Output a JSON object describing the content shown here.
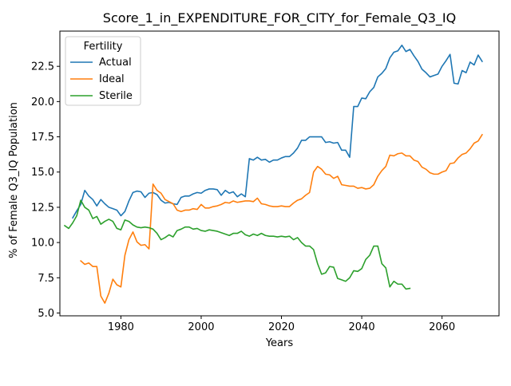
{
  "chart_data": {
    "type": "line",
    "title": "Score_1_in_EXPENDITURE_FOR_CITY_for_Female_Q3_IQ",
    "xlabel": "Years",
    "ylabel": "% of Female Q3_IQ Population",
    "xlim": [
      1964.8,
      2074.2
    ],
    "ylim": [
      4.8,
      25.0
    ],
    "xticks": [
      1980,
      2000,
      2020,
      2040,
      2060
    ],
    "yticks": [
      5.0,
      7.5,
      10.0,
      12.5,
      15.0,
      17.5,
      20.0,
      22.5
    ],
    "xtick_labels": [
      "1980",
      "2000",
      "2020",
      "2040",
      "2060"
    ],
    "ytick_labels": [
      "5.0",
      "7.5",
      "10.0",
      "12.5",
      "15.0",
      "17.5",
      "20.0",
      "22.5"
    ],
    "grid": false,
    "legend": {
      "title": "Fertility",
      "placement": "top-left"
    },
    "series": [
      {
        "name": "Actual",
        "color": "#1f77b4",
        "x": [
          1968,
          1969,
          1970,
          1971,
          1972,
          1973,
          1974,
          1975,
          1976,
          1977,
          1978,
          1979,
          1980,
          1981,
          1982,
          1983,
          1984,
          1985,
          1986,
          1987,
          1988,
          1989,
          1990,
          1991,
          1992,
          1993,
          1994,
          1995,
          1996,
          1997,
          1998,
          1999,
          2000,
          2001,
          2002,
          2003,
          2004,
          2005,
          2006,
          2007,
          2008,
          2009,
          2010,
          2011,
          2012,
          2013,
          2014,
          2015,
          2016,
          2017,
          2018,
          2019,
          2020,
          2021,
          2022,
          2023,
          2024,
          2025,
          2026,
          2027,
          2028,
          2029,
          2030,
          2031,
          2032,
          2033,
          2034,
          2035,
          2036,
          2037,
          2038,
          2039,
          2040,
          2041,
          2042,
          2043,
          2044,
          2045,
          2046,
          2047,
          2048,
          2049,
          2050,
          2051,
          2052,
          2053,
          2054,
          2055,
          2056,
          2057,
          2058,
          2059,
          2060,
          2061,
          2062,
          2063,
          2064,
          2065,
          2066,
          2067,
          2068,
          2069,
          2070
        ],
        "y": [
          11.75,
          12.25,
          12.7,
          13.7,
          13.3,
          13.05,
          12.6,
          13.05,
          12.75,
          12.5,
          12.4,
          12.3,
          11.9,
          12.2,
          12.95,
          13.55,
          13.65,
          13.6,
          13.2,
          13.5,
          13.55,
          13.4,
          13.0,
          12.8,
          12.85,
          12.75,
          12.7,
          13.2,
          13.3,
          13.3,
          13.45,
          13.55,
          13.5,
          13.7,
          13.8,
          13.8,
          13.75,
          13.35,
          13.7,
          13.5,
          13.6,
          13.25,
          13.45,
          13.25,
          15.95,
          15.85,
          16.05,
          15.85,
          15.9,
          15.7,
          15.85,
          15.85,
          16.0,
          16.1,
          16.1,
          16.35,
          16.7,
          17.25,
          17.25,
          17.5,
          17.5,
          17.5,
          17.5,
          17.1,
          17.15,
          17.05,
          17.1,
          16.55,
          16.55,
          16.05,
          19.65,
          19.65,
          20.25,
          20.2,
          20.7,
          21.0,
          21.75,
          22.0,
          22.35,
          23.1,
          23.5,
          23.6,
          24.0,
          23.55,
          23.7,
          23.25,
          22.85,
          22.3,
          22.05,
          21.75,
          21.85,
          21.95,
          22.5,
          22.9,
          23.35,
          21.3,
          21.25,
          22.2,
          22.05,
          22.8,
          22.6,
          23.3,
          22.85
        ]
      },
      {
        "name": "Ideal",
        "color": "#ff7f0e",
        "x": [
          1970,
          1971,
          1972,
          1973,
          1974,
          1975,
          1976,
          1977,
          1978,
          1979,
          1980,
          1981,
          1982,
          1983,
          1984,
          1985,
          1986,
          1987,
          1988,
          1989,
          1990,
          1991,
          1992,
          1993,
          1994,
          1995,
          1996,
          1997,
          1998,
          1999,
          2000,
          2001,
          2002,
          2003,
          2004,
          2005,
          2006,
          2007,
          2008,
          2009,
          2010,
          2011,
          2012,
          2013,
          2014,
          2015,
          2016,
          2017,
          2018,
          2019,
          2020,
          2021,
          2022,
          2023,
          2024,
          2025,
          2026,
          2027,
          2028,
          2029,
          2030,
          2031,
          2032,
          2033,
          2034,
          2035,
          2036,
          2037,
          2038,
          2039,
          2040,
          2041,
          2042,
          2043,
          2044,
          2045,
          2046,
          2047,
          2048,
          2049,
          2050,
          2051,
          2052,
          2053,
          2054,
          2055,
          2056,
          2057,
          2058,
          2059,
          2060,
          2061,
          2062,
          2063,
          2064,
          2065,
          2066,
          2067,
          2068,
          2069,
          2070
        ],
        "y": [
          8.7,
          8.45,
          8.55,
          8.3,
          8.3,
          6.2,
          5.7,
          6.4,
          7.4,
          7.0,
          6.85,
          9.1,
          10.2,
          10.75,
          10.05,
          9.8,
          9.85,
          9.55,
          14.15,
          13.7,
          13.5,
          13.05,
          12.9,
          12.75,
          12.3,
          12.2,
          12.3,
          12.3,
          12.4,
          12.35,
          12.7,
          12.45,
          12.45,
          12.55,
          12.6,
          12.7,
          12.85,
          12.8,
          12.95,
          12.85,
          12.9,
          12.95,
          12.95,
          12.9,
          13.15,
          12.75,
          12.7,
          12.6,
          12.55,
          12.55,
          12.6,
          12.55,
          12.55,
          12.8,
          13.0,
          13.1,
          13.35,
          13.55,
          15.0,
          15.4,
          15.2,
          14.85,
          14.8,
          14.55,
          14.7,
          14.1,
          14.05,
          14.0,
          14.0,
          13.85,
          13.9,
          13.8,
          13.85,
          14.1,
          14.7,
          15.1,
          15.4,
          16.2,
          16.15,
          16.3,
          16.35,
          16.15,
          16.15,
          15.85,
          15.75,
          15.35,
          15.2,
          14.95,
          14.85,
          14.85,
          15.0,
          15.1,
          15.6,
          15.65,
          16.0,
          16.25,
          16.35,
          16.65,
          17.05,
          17.2,
          17.65
        ]
      },
      {
        "name": "Sterile",
        "color": "#2ca02c",
        "x": [
          1966,
          1967,
          1968,
          1969,
          1970,
          1971,
          1972,
          1973,
          1974,
          1975,
          1976,
          1977,
          1978,
          1979,
          1980,
          1981,
          1982,
          1983,
          1984,
          1985,
          1986,
          1987,
          1988,
          1989,
          1990,
          1991,
          1992,
          1993,
          1994,
          1995,
          1996,
          1997,
          1998,
          1999,
          2000,
          2001,
          2002,
          2003,
          2004,
          2005,
          2006,
          2007,
          2008,
          2009,
          2010,
          2011,
          2012,
          2013,
          2014,
          2015,
          2016,
          2017,
          2018,
          2019,
          2020,
          2021,
          2022,
          2023,
          2024,
          2025,
          2026,
          2027,
          2028,
          2029,
          2030,
          2031,
          2032,
          2033,
          2034,
          2035,
          2036,
          2037,
          2038,
          2039,
          2040,
          2041,
          2042,
          2043,
          2044,
          2045,
          2046,
          2047,
          2048,
          2049,
          2050,
          2051,
          2052
        ],
        "y": [
          11.2,
          11.0,
          11.4,
          11.9,
          13.0,
          12.5,
          12.3,
          11.7,
          11.85,
          11.3,
          11.5,
          11.65,
          11.5,
          11.0,
          10.9,
          11.6,
          11.5,
          11.25,
          11.1,
          11.05,
          11.1,
          11.05,
          10.95,
          10.65,
          10.2,
          10.35,
          10.55,
          10.4,
          10.85,
          10.95,
          11.1,
          11.1,
          10.95,
          11.0,
          10.85,
          10.8,
          10.9,
          10.85,
          10.8,
          10.7,
          10.6,
          10.5,
          10.65,
          10.65,
          10.8,
          10.55,
          10.45,
          10.6,
          10.5,
          10.65,
          10.5,
          10.45,
          10.45,
          10.4,
          10.45,
          10.4,
          10.45,
          10.2,
          10.35,
          10.0,
          9.75,
          9.75,
          9.5,
          8.5,
          7.75,
          7.85,
          8.3,
          8.25,
          7.45,
          7.35,
          7.25,
          7.5,
          8.0,
          7.95,
          8.15,
          8.8,
          9.1,
          9.75,
          9.75,
          8.5,
          8.2,
          6.85,
          7.25,
          7.05,
          7.05,
          6.7,
          6.75
        ]
      }
    ]
  }
}
